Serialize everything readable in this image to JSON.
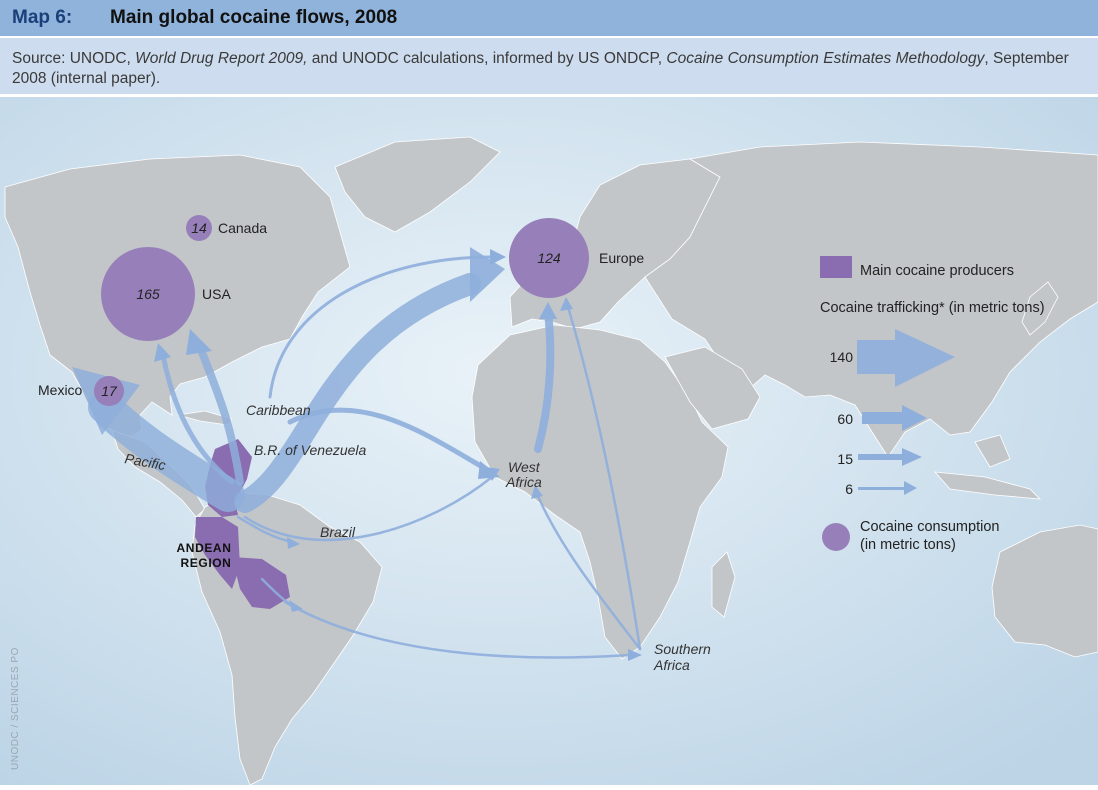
{
  "header": {
    "map_number": "Map 6:",
    "title": "Main global cocaine flows, 2008"
  },
  "source": {
    "prefix": "Source: UNODC, ",
    "report": "World Drug Report 2009,",
    "middle": " and UNODC calculations, informed by US ONDCP, ",
    "paper": "Cocaine Consumption Estimates Methodology",
    "suffix": ", September 2008 (internal paper)."
  },
  "consumption": [
    {
      "name": "USA",
      "value": "165"
    },
    {
      "name": "Europe",
      "value": "124"
    },
    {
      "name": "Mexico",
      "value": "17"
    },
    {
      "name": "Canada",
      "value": "14"
    }
  ],
  "route_labels": {
    "pacific": "Pacific",
    "caribbean": "Caribbean",
    "venezuela": "B.R. of Venezuela",
    "brazil": "Brazil",
    "west_africa_1": "West",
    "west_africa_2": "Africa",
    "southern_africa_1": "Southern",
    "southern_africa_2": "Africa"
  },
  "region_label": {
    "line1": "ANDEAN",
    "line2": "REGION"
  },
  "legend": {
    "producers": "Main cocaine producers",
    "trafficking_title": "Cocaine trafficking* (in metric tons)",
    "scale": [
      "140",
      "60",
      "15",
      "6"
    ],
    "consumption_line1": "Cocaine consumption",
    "consumption_line2": "(in metric tons)"
  },
  "credit": "UNODC / SCIENCES PO",
  "colors": {
    "ocean": "#cfe1ee",
    "land": "#c3c6c9",
    "consumption": "#9780b9",
    "producer": "#8a6cb0",
    "flow": "#8eaedb",
    "header": "#8fb3da",
    "source_band": "#cddcee"
  }
}
